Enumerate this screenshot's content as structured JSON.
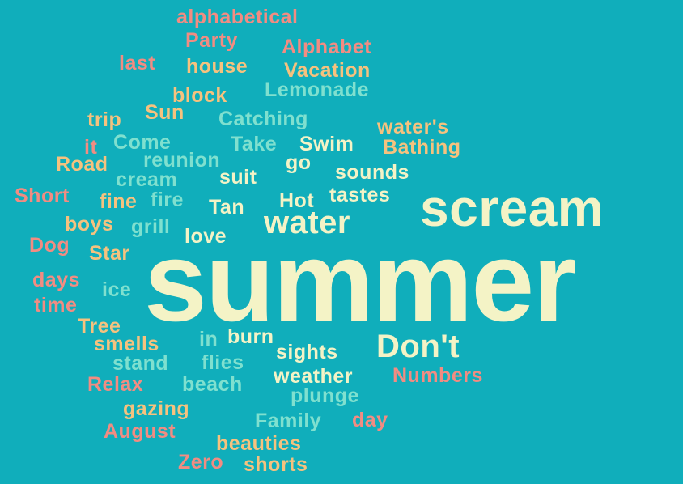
{
  "background": "#10aebb",
  "palette": {
    "pink": "#f28c82",
    "orange": "#f6c27e",
    "mint": "#7fe0cf",
    "cream": "#f4f3c6"
  },
  "words": {
    "alphabetical": "alphabetical",
    "party": "Party",
    "alphabet": "Alphabet",
    "last": "last",
    "house": "house",
    "vacation": "Vacation",
    "lemonade": "Lemonade",
    "block": "block",
    "sun": "Sun",
    "trip": "trip",
    "catching": "Catching",
    "waters": "water's",
    "it": "it",
    "come": "Come",
    "take": "Take",
    "swim": "Swim",
    "bathing": "Bathing",
    "road": "Road",
    "reunion": "reunion",
    "go": "go",
    "sounds": "sounds",
    "cream": "cream",
    "suit": "suit",
    "short": "Short",
    "fine": "fine",
    "fire": "fire",
    "tan": "Tan",
    "hot": "Hot",
    "tastes": "tastes",
    "scream": "scream",
    "water": "water",
    "boys": "boys",
    "grill": "grill",
    "love": "love",
    "dog": "Dog",
    "star": "Star",
    "summer": "summer",
    "days": "days",
    "ice": "ice",
    "time": "time",
    "tree": "Tree",
    "smells": "smells",
    "in": "in",
    "burn": "burn",
    "dont": "Don't",
    "sights": "sights",
    "stand": "stand",
    "flies": "flies",
    "relax": "Relax",
    "beach": "beach",
    "weather": "weather",
    "numbers": "Numbers",
    "plunge": "plunge",
    "gazing": "gazing",
    "family": "Family",
    "day": "day",
    "august": "August",
    "beauties": "beauties",
    "zero": "Zero",
    "shorts": "shorts"
  }
}
